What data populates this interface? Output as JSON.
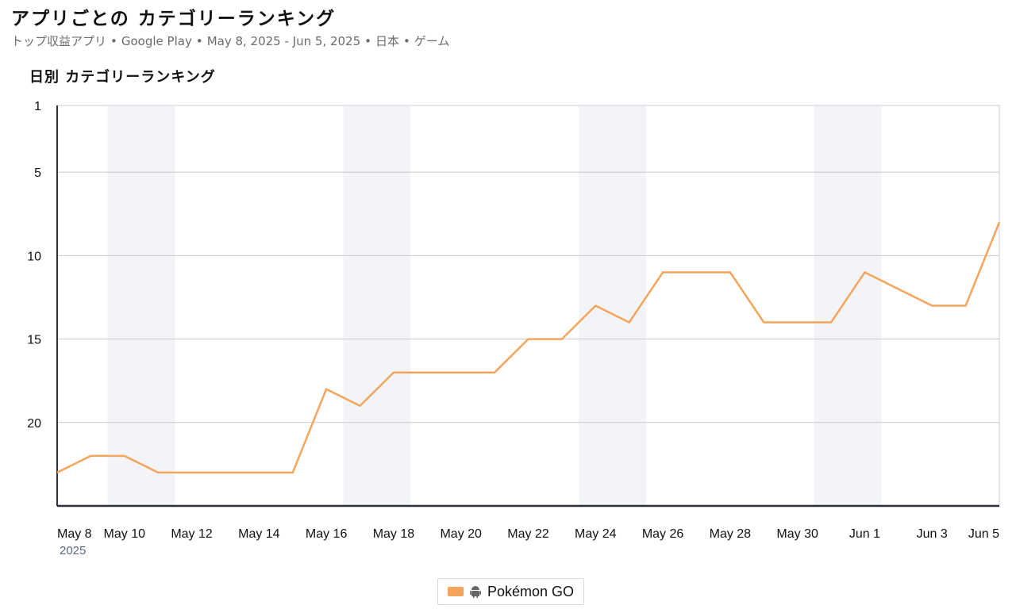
{
  "header": {
    "title": "アプリごとの カテゴリーランキング",
    "subtitle_parts": [
      "トップ収益アプリ",
      "Google Play",
      "May 8, 2025 - Jun 5, 2025",
      "日本",
      "ゲーム"
    ],
    "separator": "•"
  },
  "chart_data": {
    "type": "line",
    "title": "日別 カテゴリーランキング",
    "x_tick_labels": [
      "May 8",
      "May 10",
      "May 12",
      "May 14",
      "May 16",
      "May 18",
      "May 20",
      "May 22",
      "May 24",
      "May 26",
      "May 28",
      "May 30",
      "Jun 1",
      "Jun 3",
      "Jun 5"
    ],
    "x_sublabel": "2025",
    "y_ticks": [
      1,
      5,
      10,
      15,
      20
    ],
    "ylim": [
      1,
      25
    ],
    "y_inverted": true,
    "weekend_shading": [
      [
        "May 10",
        "May 11"
      ],
      [
        "May 17",
        "May 18"
      ],
      [
        "May 24",
        "May 25"
      ],
      [
        "May 31",
        "Jun 1"
      ]
    ],
    "grid": true,
    "legend_position": "bottom-center",
    "series": [
      {
        "name": "Pokémon GO",
        "color": "#f5a45c",
        "x": [
          "May 8",
          "May 9",
          "May 10",
          "May 11",
          "May 12",
          "May 13",
          "May 14",
          "May 15",
          "May 16",
          "May 17",
          "May 18",
          "May 19",
          "May 20",
          "May 21",
          "May 22",
          "May 23",
          "May 24",
          "May 25",
          "May 26",
          "May 27",
          "May 28",
          "May 29",
          "May 30",
          "May 31",
          "Jun 1",
          "Jun 2",
          "Jun 3",
          "Jun 4",
          "Jun 5"
        ],
        "values": [
          23,
          22,
          22,
          23,
          23,
          23,
          23,
          23,
          18,
          19,
          17,
          17,
          17,
          17,
          15,
          15,
          13,
          14,
          11,
          11,
          11,
          14,
          14,
          14,
          11,
          12,
          13,
          13,
          8
        ]
      }
    ]
  },
  "legend": {
    "items": [
      {
        "label": "Pokémon GO",
        "icon": "android-icon",
        "color": "#f5a45c"
      }
    ]
  }
}
